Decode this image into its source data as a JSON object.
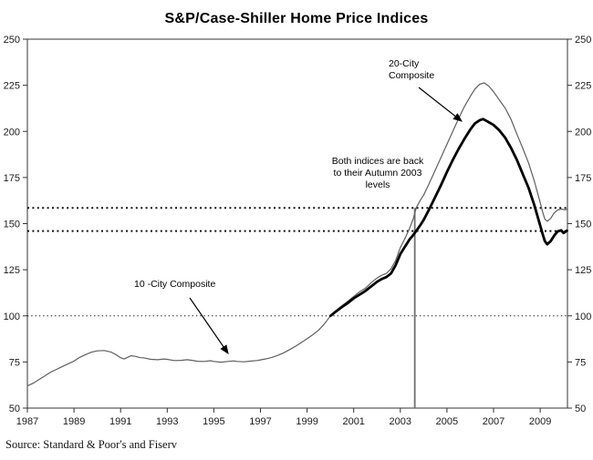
{
  "title": "S&P/Case-Shiller Home Price Indices",
  "source": "Source: Standard & Poor's and Fiserv",
  "annotations": {
    "c20_line1": "20-City",
    "c20_line2": "Composite",
    "note_line1": "Both indices are back",
    "note_line2": "to their Autumn 2003",
    "note_line3": "levels",
    "c10": "10 -City Composite"
  },
  "colors": {
    "thin_line": "#5f5f5f",
    "thick_line": "#000000",
    "frame": "#333333",
    "marker_line": "#6f6f6f",
    "dotted": "#111111"
  },
  "chart_data": {
    "type": "line",
    "title": "S&P/Case-Shiller Home Price Indices",
    "xlabel": "",
    "ylabel": "",
    "xlim": [
      1987,
      2010.17
    ],
    "ylim": [
      50,
      250
    ],
    "x_ticks": [
      1987,
      1989,
      1991,
      1993,
      1995,
      1997,
      1999,
      2001,
      2003,
      2005,
      2007,
      2009
    ],
    "y_ticks": [
      250,
      225,
      200,
      175,
      150,
      125,
      100,
      75,
      50
    ],
    "y_axis_sides": [
      "left",
      "right"
    ],
    "grid": false,
    "legend": "inline-annotations",
    "reference_lines": [
      {
        "level": 158.5,
        "style": "bold-dotted",
        "meaning": "10-City Autumn 2003 level"
      },
      {
        "level": 146.0,
        "style": "bold-dotted",
        "meaning": "20-City Autumn 2003 level"
      },
      {
        "level": 100.0,
        "style": "fine-dotted",
        "meaning": "index base = 100 (Jan 2000)"
      }
    ],
    "vertical_marker": {
      "year": 2003.62,
      "top_level": 158.5,
      "label": "Autumn 2003"
    },
    "series": [
      {
        "name": "10-City Composite",
        "style": "thin",
        "points": [
          [
            1987.0,
            62
          ],
          [
            1987.25,
            63.5
          ],
          [
            1987.5,
            65.5
          ],
          [
            1987.75,
            67.5
          ],
          [
            1988.0,
            69.5
          ],
          [
            1988.25,
            71
          ],
          [
            1988.5,
            72.5
          ],
          [
            1988.75,
            74
          ],
          [
            1989.0,
            75.5
          ],
          [
            1989.25,
            77.5
          ],
          [
            1989.5,
            79
          ],
          [
            1989.75,
            80.3
          ],
          [
            1990.0,
            81
          ],
          [
            1990.3,
            81.2
          ],
          [
            1990.6,
            80.3
          ],
          [
            1990.8,
            79
          ],
          [
            1991.0,
            77.3
          ],
          [
            1991.15,
            76.6
          ],
          [
            1991.3,
            77.5
          ],
          [
            1991.45,
            78.4
          ],
          [
            1991.65,
            78
          ],
          [
            1991.85,
            77.3
          ],
          [
            1992.0,
            77.2
          ],
          [
            1992.3,
            76.4
          ],
          [
            1992.6,
            76.2
          ],
          [
            1992.85,
            76.6
          ],
          [
            1993.0,
            76.4
          ],
          [
            1993.3,
            75.8
          ],
          [
            1993.6,
            75.9
          ],
          [
            1993.85,
            76.2
          ],
          [
            1994.0,
            76
          ],
          [
            1994.3,
            75.4
          ],
          [
            1994.6,
            75.3
          ],
          [
            1994.85,
            75.7
          ],
          [
            1995.0,
            75.3
          ],
          [
            1995.3,
            74.9
          ],
          [
            1995.6,
            75.3
          ],
          [
            1995.85,
            75.6
          ],
          [
            1996.0,
            75.3
          ],
          [
            1996.3,
            75.1
          ],
          [
            1996.6,
            75.5
          ],
          [
            1996.85,
            75.8
          ],
          [
            1997.0,
            76.1
          ],
          [
            1997.25,
            76.7
          ],
          [
            1997.5,
            77.5
          ],
          [
            1997.75,
            78.6
          ],
          [
            1998.0,
            80
          ],
          [
            1998.25,
            81.7
          ],
          [
            1998.5,
            83.5
          ],
          [
            1998.75,
            85.5
          ],
          [
            1999.0,
            87.6
          ],
          [
            1999.25,
            89.8
          ],
          [
            1999.5,
            92.3
          ],
          [
            1999.75,
            95.8
          ],
          [
            2000.0,
            100
          ],
          [
            2000.25,
            103
          ],
          [
            2000.5,
            105.5
          ],
          [
            2000.75,
            108
          ],
          [
            2001.0,
            110.5
          ],
          [
            2001.25,
            113
          ],
          [
            2001.5,
            115
          ],
          [
            2001.75,
            118
          ],
          [
            2002.0,
            120.5
          ],
          [
            2002.2,
            122
          ],
          [
            2002.4,
            123
          ],
          [
            2002.6,
            125.5
          ],
          [
            2002.8,
            130
          ],
          [
            2003.0,
            137
          ],
          [
            2003.2,
            142
          ],
          [
            2003.4,
            147.5
          ],
          [
            2003.55,
            152.5
          ],
          [
            2003.68,
            158.5
          ],
          [
            2003.85,
            162.5
          ],
          [
            2004.0,
            165.5
          ],
          [
            2004.25,
            172
          ],
          [
            2004.5,
            179
          ],
          [
            2004.75,
            186
          ],
          [
            2005.0,
            193
          ],
          [
            2005.25,
            200
          ],
          [
            2005.5,
            207
          ],
          [
            2005.75,
            213.5
          ],
          [
            2006.0,
            219
          ],
          [
            2006.2,
            223
          ],
          [
            2006.4,
            225.5
          ],
          [
            2006.6,
            226.3
          ],
          [
            2006.8,
            224.5
          ],
          [
            2007.0,
            221.5
          ],
          [
            2007.25,
            217
          ],
          [
            2007.5,
            212.5
          ],
          [
            2007.75,
            206.5
          ],
          [
            2008.0,
            198.5
          ],
          [
            2008.25,
            191
          ],
          [
            2008.5,
            183
          ],
          [
            2008.75,
            173
          ],
          [
            2009.0,
            161.5
          ],
          [
            2009.1,
            156.5
          ],
          [
            2009.2,
            152.5
          ],
          [
            2009.3,
            151.3
          ],
          [
            2009.45,
            152.8
          ],
          [
            2009.6,
            155.8
          ],
          [
            2009.75,
            157.4
          ],
          [
            2009.9,
            157.9
          ],
          [
            2010.05,
            157.5
          ],
          [
            2010.15,
            157.7
          ]
        ]
      },
      {
        "name": "20-City Composite",
        "style": "thick",
        "points": [
          [
            2000.0,
            100
          ],
          [
            2000.25,
            102.5
          ],
          [
            2000.5,
            104.8
          ],
          [
            2000.75,
            107
          ],
          [
            2001.0,
            109.5
          ],
          [
            2001.25,
            111.5
          ],
          [
            2001.5,
            113.5
          ],
          [
            2001.75,
            116
          ],
          [
            2002.0,
            118.5
          ],
          [
            2002.2,
            120
          ],
          [
            2002.4,
            121
          ],
          [
            2002.6,
            123
          ],
          [
            2002.8,
            127.5
          ],
          [
            2003.0,
            133.5
          ],
          [
            2003.2,
            137.5
          ],
          [
            2003.4,
            141.5
          ],
          [
            2003.55,
            143.8
          ],
          [
            2003.68,
            146
          ],
          [
            2003.85,
            149
          ],
          [
            2004.0,
            152
          ],
          [
            2004.25,
            158
          ],
          [
            2004.5,
            164.5
          ],
          [
            2004.75,
            171
          ],
          [
            2005.0,
            178
          ],
          [
            2005.25,
            184.5
          ],
          [
            2005.5,
            190.5
          ],
          [
            2005.75,
            196
          ],
          [
            2006.0,
            201
          ],
          [
            2006.2,
            204.3
          ],
          [
            2006.4,
            206
          ],
          [
            2006.55,
            206.7
          ],
          [
            2006.75,
            205.3
          ],
          [
            2007.0,
            203.5
          ],
          [
            2007.25,
            200.5
          ],
          [
            2007.5,
            196.5
          ],
          [
            2007.75,
            191
          ],
          [
            2008.0,
            184.5
          ],
          [
            2008.25,
            177
          ],
          [
            2008.5,
            169.5
          ],
          [
            2008.75,
            160
          ],
          [
            2009.0,
            149
          ],
          [
            2009.1,
            144.5
          ],
          [
            2009.2,
            140.5
          ],
          [
            2009.3,
            138.8
          ],
          [
            2009.45,
            140.5
          ],
          [
            2009.6,
            143.5
          ],
          [
            2009.75,
            145.8
          ],
          [
            2009.9,
            146.4
          ],
          [
            2010.0,
            144.9
          ],
          [
            2010.15,
            146.2
          ]
        ]
      }
    ]
  }
}
